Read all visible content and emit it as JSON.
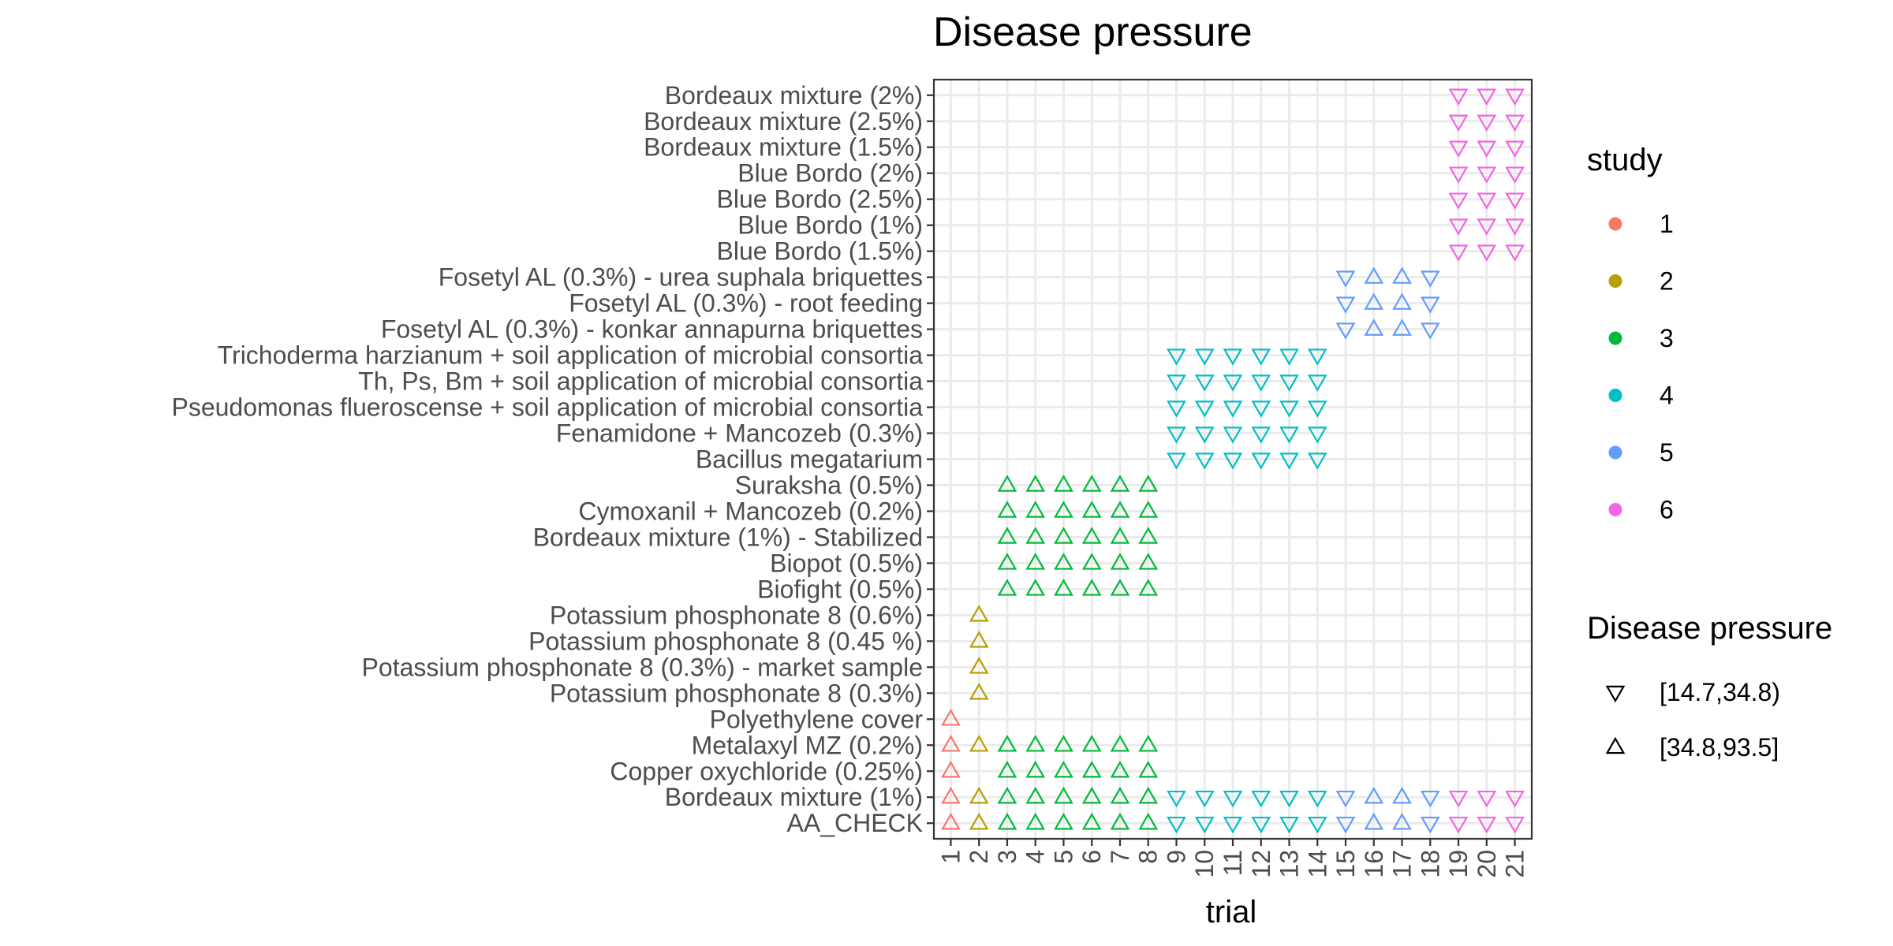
{
  "chart_data": {
    "type": "scatter",
    "title": "Disease pressure",
    "xlabel": "trial",
    "ylabel": "",
    "x_ticks": [
      "1",
      "2",
      "3",
      "4",
      "5",
      "6",
      "7",
      "8",
      "9",
      "10",
      "11",
      "12",
      "13",
      "14",
      "15",
      "16",
      "17",
      "18",
      "19",
      "20",
      "21"
    ],
    "y_categories": [
      "AA_CHECK",
      "Bordeaux mixture (1%)",
      "Copper oxychloride (0.25%)",
      "Metalaxyl MZ (0.2%)",
      "Polyethylene cover",
      "Potassium phosphonate 8 (0.3%)",
      "Potassium phosphonate 8 (0.3%) - market sample",
      "Potassium phosphonate 8 (0.45 %)",
      "Potassium phosphonate 8 (0.6%)",
      "Biofight (0.5%)",
      "Biopot (0.5%)",
      "Bordeaux mixture (1%) - Stabilized",
      "Cymoxanil + Mancozeb (0.2%)",
      "Suraksha (0.5%)",
      "Bacillus megatarium",
      "Fenamidone + Mancozeb (0.3%)",
      "Pseudomonas flueroscense + soil application of microbial consortia",
      "Th, Ps, Bm + soil application of microbial consortia",
      "Trichoderma harzianum + soil application of microbial consortia",
      "Fosetyl AL (0.3%) - konkar annapurna briquettes",
      "Fosetyl AL (0.3%) - root feeding",
      "Fosetyl AL (0.3%) - urea suphala briquettes",
      "Blue Bordo (1.5%)",
      "Blue Bordo (1%)",
      "Blue Bordo (2.5%)",
      "Blue Bordo (2%)",
      "Bordeaux mixture (1.5%)",
      "Bordeaux mixture (2.5%)",
      "Bordeaux mixture (2%)"
    ],
    "studies": [
      {
        "name": "1",
        "color": "#F8766D",
        "trials": [
          1
        ],
        "pressure": "high",
        "treatments": [
          "AA_CHECK",
          "Bordeaux mixture (1%)",
          "Copper oxychloride (0.25%)",
          "Metalaxyl MZ (0.2%)",
          "Polyethylene cover"
        ]
      },
      {
        "name": "2",
        "color": "#B79F00",
        "trials": [
          2
        ],
        "pressure": "high",
        "treatments": [
          "AA_CHECK",
          "Bordeaux mixture (1%)",
          "Metalaxyl MZ (0.2%)",
          "Potassium phosphonate 8 (0.3%)",
          "Potassium phosphonate 8 (0.3%) - market sample",
          "Potassium phosphonate 8 (0.45 %)",
          "Potassium phosphonate 8 (0.6%)"
        ]
      },
      {
        "name": "3",
        "color": "#00BA38",
        "trials": [
          3,
          4,
          5,
          6,
          7,
          8
        ],
        "pressure": "high",
        "treatments": [
          "AA_CHECK",
          "Bordeaux mixture (1%)",
          "Copper oxychloride (0.25%)",
          "Metalaxyl MZ (0.2%)",
          "Biofight (0.5%)",
          "Biopot (0.5%)",
          "Bordeaux mixture (1%) - Stabilized",
          "Cymoxanil + Mancozeb (0.2%)",
          "Suraksha (0.5%)"
        ]
      },
      {
        "name": "4",
        "color": "#00BFC4",
        "trials": [
          9,
          10,
          11,
          12,
          13,
          14
        ],
        "pressure": "low",
        "treatments": [
          "AA_CHECK",
          "Bordeaux mixture (1%)",
          "Bacillus megatarium",
          "Fenamidone + Mancozeb (0.3%)",
          "Pseudomonas flueroscense + soil application of microbial consortia",
          "Th, Ps, Bm + soil application of microbial consortia",
          "Trichoderma harzianum + soil application of microbial consortia"
        ]
      },
      {
        "name": "5",
        "color": "#619CFF",
        "trials": [
          15,
          16,
          17,
          18
        ],
        "pressure_by_trial": {
          "15": "low",
          "16": "high",
          "17": "high",
          "18": "low"
        },
        "treatments": [
          "AA_CHECK",
          "Bordeaux mixture (1%)",
          "Fosetyl AL (0.3%) - konkar annapurna briquettes",
          "Fosetyl AL (0.3%) - root feeding",
          "Fosetyl AL (0.3%) - urea suphala briquettes"
        ]
      },
      {
        "name": "6",
        "color": "#F564E3",
        "trials": [
          19,
          20,
          21
        ],
        "pressure": "low",
        "treatments": [
          "AA_CHECK",
          "Bordeaux mixture (1%)",
          "Blue Bordo (1.5%)",
          "Blue Bordo (1%)",
          "Blue Bordo (2.5%)",
          "Blue Bordo (2%)",
          "Bordeaux mixture (1.5%)",
          "Bordeaux mixture (2.5%)",
          "Bordeaux mixture (2%)"
        ]
      }
    ],
    "grid": true,
    "legend": {
      "placement": "right",
      "color_title": "study",
      "shape_title": "Disease pressure",
      "shape_items": [
        {
          "key": "low",
          "label": "[14.7,34.8)",
          "shape": "triangle-down"
        },
        {
          "key": "high",
          "label": "[34.8,93.5]",
          "shape": "triangle-up"
        }
      ]
    }
  }
}
